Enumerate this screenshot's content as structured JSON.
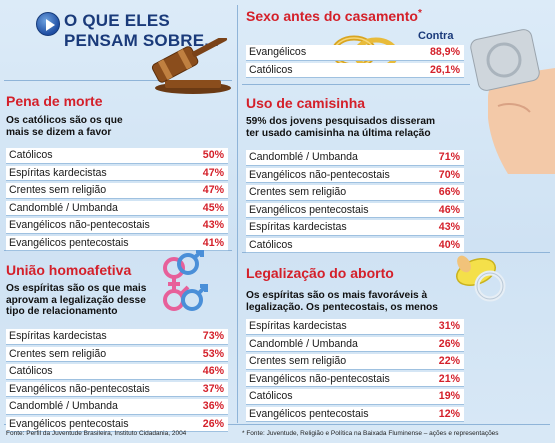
{
  "header": {
    "line1": "O QUE ELES",
    "line2": "PENSAM SOBRE..."
  },
  "pena": {
    "title": "Pena de morte",
    "subtitle_l1": "Os católicos são os que",
    "subtitle_l2": "mais se dizem a favor",
    "rows": [
      {
        "label": "Católicos",
        "value": "50%"
      },
      {
        "label": "Espíritas kardecistas",
        "value": "47%"
      },
      {
        "label": "Crentes sem religião",
        "value": "47%"
      },
      {
        "label": "Candomblé / Umbanda",
        "value": "45%"
      },
      {
        "label": "Evangélicos não-pentecostais",
        "value": "43%"
      },
      {
        "label": "Evangélicos pentecostais",
        "value": "41%"
      }
    ]
  },
  "uniao": {
    "title": "União homoafetiva",
    "subtitle_l1": "Os espíritas são os que mais",
    "subtitle_l2": "aprovam a legalização desse",
    "subtitle_l3": "tipo de relacionamento",
    "rows": [
      {
        "label": "Espíritas kardecistas",
        "value": "73%"
      },
      {
        "label": "Crentes sem religião",
        "value": "53%"
      },
      {
        "label": "Católicos",
        "value": "46%"
      },
      {
        "label": "Evangélicos não-pentecostais",
        "value": "37%"
      },
      {
        "label": "Candomblé / Umbanda",
        "value": "36%"
      },
      {
        "label": "Evangélicos pentecostais",
        "value": "26%"
      }
    ]
  },
  "sexo": {
    "title": "Sexo antes do casamento",
    "asterisk": "*",
    "contra_label": "Contra",
    "rows": [
      {
        "label": "Evangélicos",
        "value": "88,9%"
      },
      {
        "label": "Católicos",
        "value": "26,1%"
      }
    ]
  },
  "camisinha": {
    "title": "Uso de camisinha",
    "subtitle_l1": "59% dos jovens pesquisados disseram",
    "subtitle_l2": "ter usado camisinha na última relação",
    "rows": [
      {
        "label": "Candomblé / Umbanda",
        "value": "71%"
      },
      {
        "label": "Evangélicos não-pentecostais",
        "value": "70%"
      },
      {
        "label": "Crentes sem religião",
        "value": "66%"
      },
      {
        "label": "Evangélicos pentecostais",
        "value": "46%"
      },
      {
        "label": "Espíritas kardecistas",
        "value": "43%"
      },
      {
        "label": "Católicos",
        "value": "40%"
      }
    ]
  },
  "aborto": {
    "title": "Legalização do aborto",
    "subtitle_l1": "Os espíritas são os mais favoráveis à",
    "subtitle_l2": "legalização. Os pentecostais, os menos",
    "rows": [
      {
        "label": "Espíritas kardecistas",
        "value": "31%"
      },
      {
        "label": "Candomblé / Umbanda",
        "value": "26%"
      },
      {
        "label": "Crentes sem religião",
        "value": "22%"
      },
      {
        "label": "Evangélicos não-pentecostais",
        "value": "21%"
      },
      {
        "label": "Católicos",
        "value": "19%"
      },
      {
        "label": "Evangélicos pentecostais",
        "value": "12%"
      }
    ]
  },
  "sources": {
    "left": "Fonte: Perfil da Juventude Brasileira, Instituto Cidadania, 2004",
    "right": "* Fonte: Juventude, Religião e Política na Baixada Fluminense – ações e representações"
  },
  "icons": [
    "play-icon",
    "gavel-icon",
    "gender-symbols-icon",
    "wedding-rings-icon",
    "condom-hand-icon",
    "pacifier-icon"
  ],
  "colors": {
    "title_red": "#d4202a",
    "header_blue": "#1a3a7a",
    "value_red": "#d4202a"
  }
}
